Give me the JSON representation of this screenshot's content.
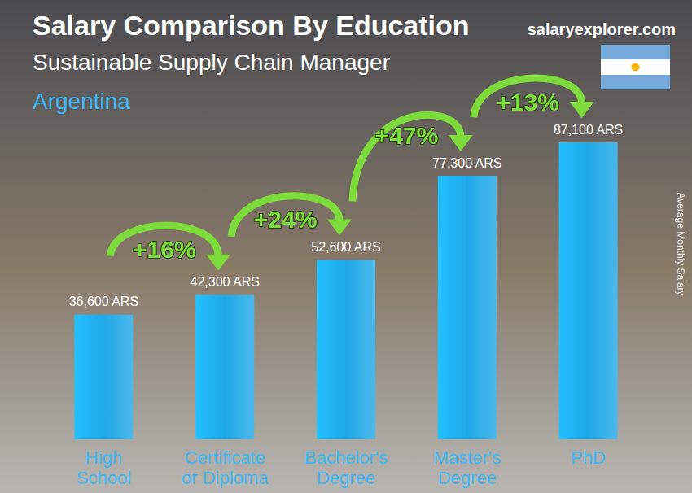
{
  "chart_data": {
    "type": "bar",
    "title": "Salary Comparison By Education",
    "subtitle": "Sustainable Supply Chain Manager",
    "country": "Argentina",
    "source": "salaryexplorer.com",
    "y_label": "Average Monthly Salary",
    "categories": [
      "High School",
      "Certificate or Diploma",
      "Bachelor's Degree",
      "Master's Degree",
      "PhD"
    ],
    "values": [
      36600,
      42300,
      52600,
      77300,
      87100
    ],
    "value_labels": [
      "36,600 ARS",
      "42,300 ARS",
      "52,600 ARS",
      "77,300 ARS",
      "87,100 ARS"
    ],
    "color": "#1fa8e8",
    "ylim": [
      0,
      100000
    ],
    "grid": false,
    "data_labels": true,
    "tick_labels": "x",
    "annotations": [
      {
        "text": "+16%",
        "from": "High School",
        "to": "Certificate or Diploma"
      },
      {
        "text": "+24%",
        "from": "Certificate or Diploma",
        "to": "Bachelor's Degree"
      },
      {
        "text": "+47%",
        "from": "Bachelor's Degree",
        "to": "Master's Degree"
      },
      {
        "text": "+13%",
        "from": "Master's Degree",
        "to": "PhD"
      }
    ]
  }
}
